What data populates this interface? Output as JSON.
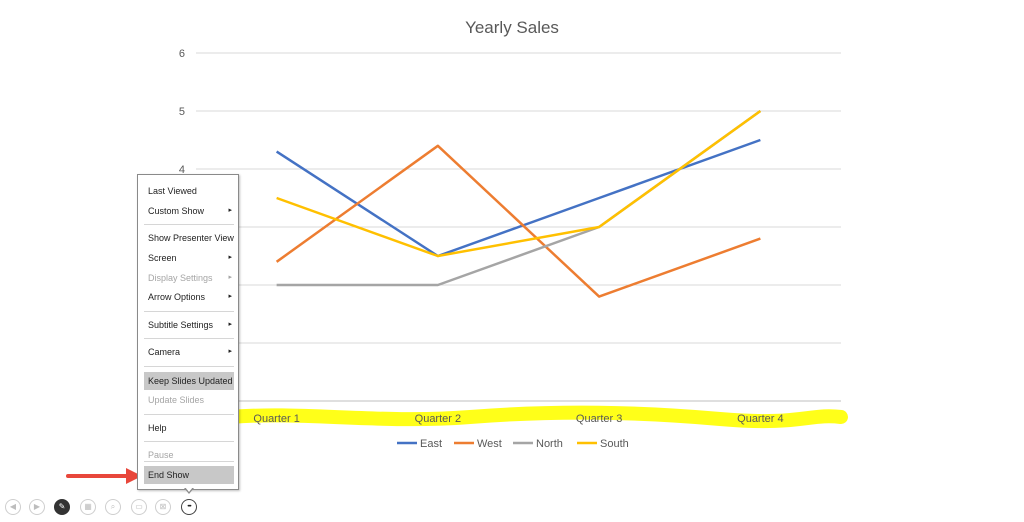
{
  "chart_data": {
    "type": "line",
    "title": "Yearly Sales",
    "categories": [
      "Quarter 1",
      "Quarter 2",
      "Quarter 3",
      "Quarter 4"
    ],
    "ylim": [
      0,
      6
    ],
    "yticks": [
      "6",
      "5",
      "4"
    ],
    "grid": true,
    "legend_position": "bottom",
    "series": [
      {
        "name": "East",
        "color": "#4472c4",
        "values": [
          4.3,
          2.5,
          3.5,
          4.5
        ]
      },
      {
        "name": "West",
        "color": "#ed7d31",
        "values": [
          2.4,
          4.4,
          1.8,
          2.8
        ]
      },
      {
        "name": "North",
        "color": "#a5a5a5",
        "values": [
          2.0,
          2.0,
          3.0,
          5.0
        ]
      },
      {
        "name": "South",
        "color": "#ffc000",
        "values": [
          3.5,
          2.5,
          3.0,
          5.0
        ]
      }
    ],
    "category_highlight_color": "#ffff00"
  },
  "context_menu": {
    "items": [
      {
        "label": "Last Viewed",
        "submenu": false,
        "disabled": false,
        "highlight": false
      },
      {
        "label": "Custom Show",
        "submenu": true,
        "disabled": false,
        "highlight": false
      },
      {
        "label": "Show Presenter View",
        "submenu": false,
        "disabled": false,
        "highlight": false
      },
      {
        "label": "Screen",
        "submenu": true,
        "disabled": false,
        "highlight": false
      },
      {
        "label": "Display Settings",
        "submenu": true,
        "disabled": true,
        "highlight": false
      },
      {
        "label": "Arrow Options",
        "submenu": true,
        "disabled": false,
        "highlight": false
      },
      {
        "label": "Subtitle Settings",
        "submenu": true,
        "disabled": false,
        "highlight": false
      },
      {
        "label": "Camera",
        "submenu": true,
        "disabled": false,
        "highlight": false
      },
      {
        "label": "Keep Slides Updated",
        "submenu": false,
        "disabled": false,
        "highlight": true
      },
      {
        "label": "Update Slides",
        "submenu": false,
        "disabled": true,
        "highlight": false
      },
      {
        "label": "Help",
        "submenu": false,
        "disabled": false,
        "highlight": false
      },
      {
        "label": "Pause",
        "submenu": false,
        "disabled": true,
        "highlight": false
      },
      {
        "label": "End Show",
        "submenu": false,
        "disabled": false,
        "highlight": true
      }
    ],
    "submenu_glyph": "▸"
  },
  "toolbar": {
    "buttons": [
      {
        "icon": "previous-icon",
        "glyph": "◀"
      },
      {
        "icon": "next-icon",
        "glyph": "▶"
      },
      {
        "icon": "pen-icon",
        "glyph": "✎"
      },
      {
        "icon": "see-all-slides-icon",
        "glyph": "▦"
      },
      {
        "icon": "zoom-icon",
        "glyph": "⌕"
      },
      {
        "icon": "subtitles-icon",
        "glyph": "▭"
      },
      {
        "icon": "camera-icon",
        "glyph": "⊠"
      },
      {
        "icon": "more-options-icon",
        "glyph": "•••"
      }
    ]
  },
  "annotation": {
    "arrow_color": "#e8473b"
  }
}
